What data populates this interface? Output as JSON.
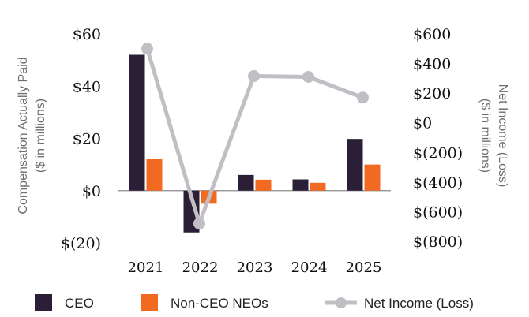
{
  "chart_data": {
    "type": "bar+line",
    "categories": [
      "2021",
      "2022",
      "2023",
      "2024",
      "2025"
    ],
    "series": [
      {
        "name": "CEO",
        "type": "bar",
        "axis": "left",
        "color": "#2b1f38",
        "values": [
          52,
          -16,
          6,
          4.3,
          19.8
        ]
      },
      {
        "name": "Non-CEO NEOs",
        "type": "bar",
        "axis": "left",
        "color": "#f26a21",
        "values": [
          12,
          -5,
          4.2,
          3,
          10
        ]
      },
      {
        "name": "Net Income (Loss)",
        "type": "line",
        "axis": "right",
        "color": "#c2bfc4",
        "values": [
          500,
          -680,
          315,
          310,
          170
        ]
      }
    ],
    "left_axis": {
      "label_line1": "Compensation Actually Paid",
      "label_line2": "($ in millions)",
      "ylim": [
        -20,
        60
      ],
      "ticks": [
        60,
        40,
        20,
        0,
        -20
      ],
      "tick_labels": [
        "$60",
        "$40",
        "$20",
        "$0",
        "$(20)"
      ]
    },
    "right_axis": {
      "label_line1": "Net Income (Loss)",
      "label_line2": "($ in millions)",
      "ylim": [
        -800,
        600
      ],
      "ticks": [
        600,
        400,
        200,
        0,
        -200,
        -400,
        -600,
        -800
      ],
      "tick_labels": [
        "$600",
        "$400",
        "$200",
        "$0",
        "$(200)",
        "$(400)",
        "$(600)",
        "$(800)"
      ]
    },
    "legend": {
      "placement": "bottom",
      "items": [
        "CEO",
        "Non-CEO NEOs",
        "Net Income (Loss)"
      ]
    }
  }
}
